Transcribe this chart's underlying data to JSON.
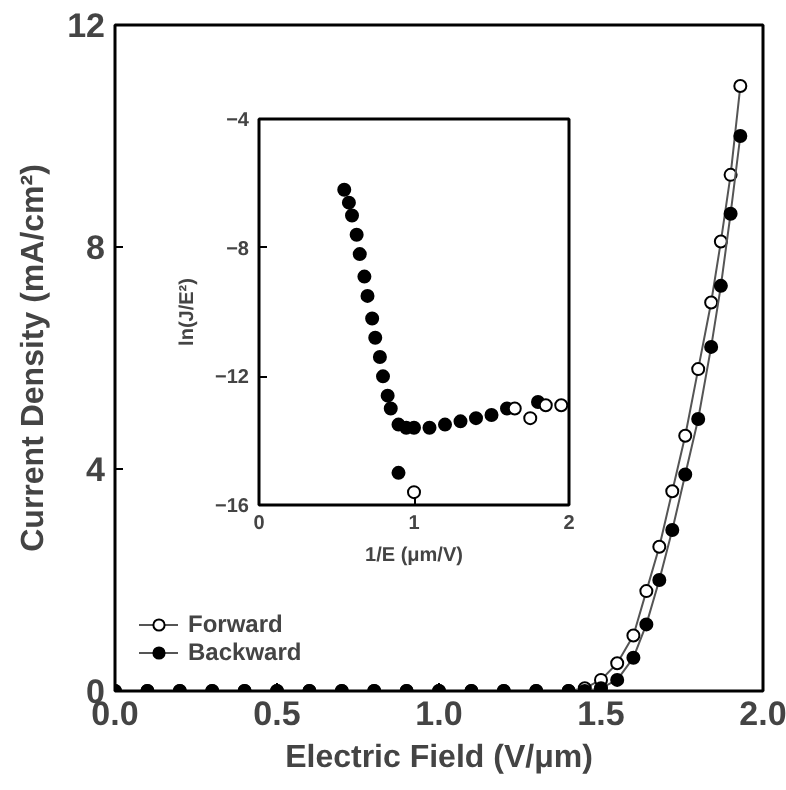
{
  "chart_data": [
    {
      "type": "line",
      "xlabel": "Electric Field (V/μm)",
      "ylabel": "Current Density (mA/cm²)",
      "xlim": [
        0,
        2.0
      ],
      "ylim": [
        0,
        12
      ],
      "xticks": [
        {
          "value": 0,
          "label": "0.0"
        },
        0.5,
        {
          "value": 1,
          "label": "1.0"
        },
        1.5,
        {
          "value": 2,
          "label": "2.0"
        }
      ],
      "yticks": [
        0,
        4,
        8,
        12
      ],
      "marker": "circle",
      "legend": "bottom left",
      "grid": false,
      "series": [
        {
          "name": "Forward",
          "color": "#ffffff",
          "x": [
            0,
            0.1,
            0.2,
            0.3,
            0.4,
            0.5,
            0.6,
            0.7,
            0.8,
            0.9,
            1.0,
            1.1,
            1.2,
            1.3,
            1.4,
            1.45,
            1.5,
            1.55,
            1.6,
            1.64,
            1.68,
            1.72,
            1.76,
            1.8,
            1.84,
            1.87,
            1.9,
            1.93
          ],
          "values": [
            0,
            0,
            0,
            0,
            0,
            0,
            0,
            0,
            0,
            0,
            0,
            0,
            0,
            0,
            0,
            0.05,
            0.2,
            0.5,
            1.0,
            1.8,
            2.6,
            3.6,
            4.6,
            5.8,
            7.0,
            8.1,
            9.3,
            10.9
          ]
        },
        {
          "name": "Backward",
          "color": "#000000",
          "x": [
            0,
            0.1,
            0.2,
            0.3,
            0.4,
            0.5,
            0.6,
            0.7,
            0.8,
            0.9,
            1.0,
            1.1,
            1.2,
            1.3,
            1.4,
            1.45,
            1.5,
            1.55,
            1.6,
            1.64,
            1.68,
            1.72,
            1.76,
            1.8,
            1.84,
            1.87,
            1.9,
            1.93
          ],
          "values": [
            0,
            0,
            0,
            0,
            0,
            0,
            0,
            0,
            0,
            0,
            0,
            0,
            0,
            0,
            0,
            0,
            0.05,
            0.2,
            0.6,
            1.2,
            2.0,
            2.9,
            3.9,
            4.9,
            6.2,
            7.3,
            8.6,
            10.0
          ]
        }
      ]
    },
    {
      "type": "scatter",
      "xlabel": "1/E (μm/V)",
      "ylabel": "ln(J/E²)",
      "xlim": [
        0,
        2
      ],
      "ylim": [
        -16,
        -4
      ],
      "xticks": [
        0,
        1,
        2
      ],
      "yticks": [
        -16,
        -12,
        -8,
        -4
      ],
      "marker": "circle",
      "grid": false,
      "series": [
        {
          "color": "#000000",
          "x": [
            0.55,
            0.58,
            0.6,
            0.63,
            0.65,
            0.68,
            0.7,
            0.73,
            0.75,
            0.78,
            0.8,
            0.83,
            0.85,
            0.9,
            0.95,
            1.0,
            1.1,
            1.2,
            1.3,
            1.4,
            1.5,
            1.6,
            1.8,
            0.9
          ],
          "values": [
            -6.2,
            -6.6,
            -7.0,
            -7.6,
            -8.2,
            -8.9,
            -9.5,
            -10.2,
            -10.8,
            -11.4,
            -12.0,
            -12.6,
            -13.0,
            -13.5,
            -13.6,
            -13.6,
            -13.6,
            -13.5,
            -13.4,
            -13.3,
            -13.2,
            -13.0,
            -12.8,
            -15.0
          ]
        },
        {
          "color": "#ffffff",
          "x": [
            1.0,
            1.65,
            1.75,
            1.85,
            1.95
          ],
          "values": [
            -15.6,
            -13.0,
            -13.3,
            -12.9,
            -12.9
          ]
        }
      ]
    }
  ]
}
